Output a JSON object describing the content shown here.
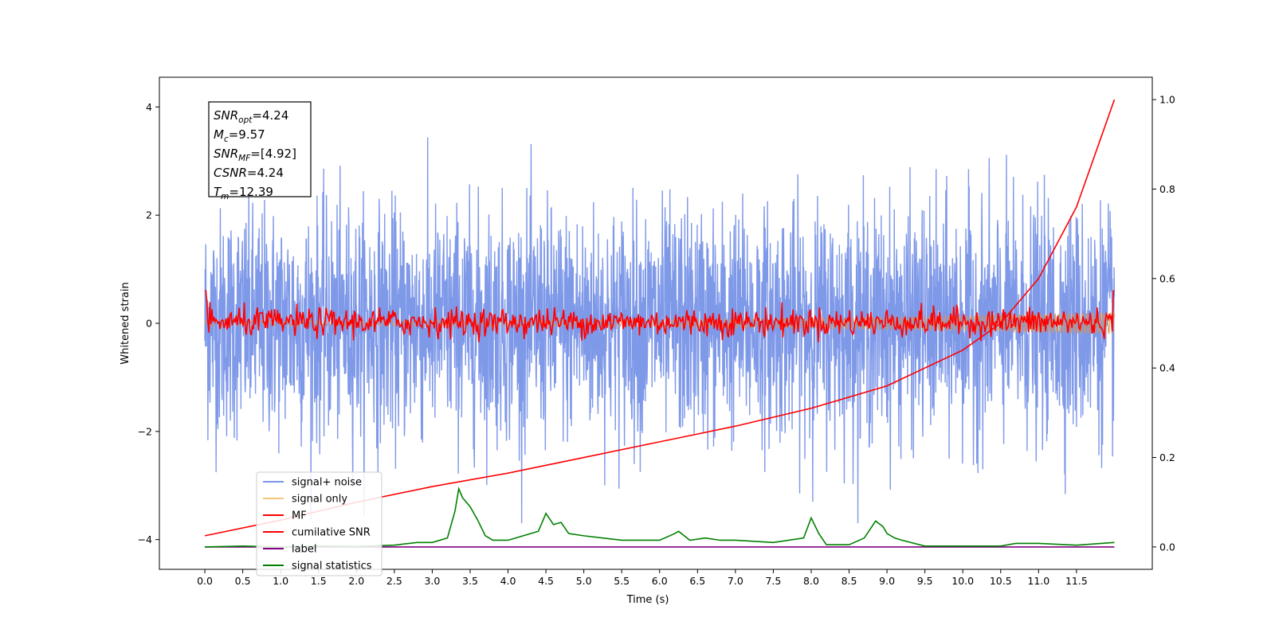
{
  "chart_data": {
    "type": "line",
    "title": "",
    "xlabel": "Time (s)",
    "ylabel": "Whitened strain",
    "xlim": [
      -0.6,
      12.5
    ],
    "ylim": [
      -4.55,
      4.55
    ],
    "y2lim": [
      -0.05,
      1.05
    ],
    "x_ticks": [
      "0.0",
      "0.5",
      "1.0",
      "1.5",
      "2.0",
      "2.5",
      "3.0",
      "3.5",
      "4.0",
      "4.5",
      "5.0",
      "5.5",
      "6.0",
      "6.5",
      "7.0",
      "7.5",
      "8.0",
      "8.5",
      "9.0",
      "9.5",
      "10.0",
      "10.5",
      "11.0",
      "11.5"
    ],
    "x_tick_values": [
      0,
      0.5,
      1,
      1.5,
      2,
      2.5,
      3,
      3.5,
      4,
      4.5,
      5,
      5.5,
      6,
      6.5,
      7,
      7.5,
      8,
      8.5,
      9,
      9.5,
      10,
      10.5,
      11,
      11.5
    ],
    "y_ticks": [
      "4",
      "2",
      "0",
      "−2",
      "−4"
    ],
    "y_tick_values": [
      4,
      2,
      0,
      -2,
      -4
    ],
    "y2_ticks": [
      "1.0",
      "0.8",
      "0.6",
      "0.4",
      "0.2",
      "0.0"
    ],
    "y2_tick_values": [
      1.0,
      0.8,
      0.6,
      0.4,
      0.2,
      0.0
    ],
    "grid": false,
    "legend_placement": "lower-left",
    "annotation": {
      "lines": [
        {
          "sym": "SNR",
          "sub": "opt",
          "rest": "=4.24"
        },
        {
          "sym": "M",
          "sub": "c",
          "rest": "=9.57"
        },
        {
          "sym": "SNR",
          "sub": "MF",
          "rest": "=[4.92]"
        },
        {
          "sym": "CSNR",
          "sub": "",
          "rest": "=4.24"
        },
        {
          "sym": "T",
          "sub": "m",
          "rest": "=12.39"
        }
      ]
    },
    "series": [
      {
        "name": "signal+ noise",
        "color": "#7893e8",
        "axis": "left",
        "t_range": [
          0,
          12
        ],
        "amplitude_range": [
          -3.7,
          4.2
        ]
      },
      {
        "name": "signal only",
        "color": "#f5c77a",
        "axis": "left",
        "t_range": [
          0,
          12
        ],
        "amplitude_range": [
          -0.2,
          0.2
        ]
      },
      {
        "name": "MF",
        "color": "#ff0000",
        "axis": "left",
        "t_range": [
          0,
          12
        ],
        "amplitude_range": [
          -0.35,
          1.0
        ]
      },
      {
        "name": "cumilative SNR",
        "color": "#ff0000",
        "axis": "right",
        "x": [
          0,
          1,
          2,
          3,
          4,
          5,
          6,
          7,
          8,
          9,
          10,
          10.5,
          11,
          11.5,
          12
        ],
        "y": [
          0.025,
          0.06,
          0.1,
          0.135,
          0.165,
          0.2,
          0.235,
          0.27,
          0.31,
          0.36,
          0.44,
          0.5,
          0.6,
          0.76,
          1.0
        ]
      },
      {
        "name": "label",
        "color": "#800080",
        "axis": "right",
        "x": [
          0,
          12
        ],
        "y": [
          0.0,
          0.0
        ]
      },
      {
        "name": "signal statistics",
        "color": "#008000",
        "axis": "right",
        "x": [
          0,
          0.5,
          1,
          1.5,
          2,
          2.5,
          2.8,
          3.0,
          3.2,
          3.3,
          3.35,
          3.4,
          3.5,
          3.6,
          3.7,
          3.8,
          4.0,
          4.2,
          4.4,
          4.5,
          4.6,
          4.7,
          4.8,
          5.0,
          5.5,
          6.0,
          6.2,
          6.25,
          6.4,
          6.6,
          6.8,
          7.0,
          7.5,
          7.9,
          8.0,
          8.1,
          8.2,
          8.5,
          8.7,
          8.85,
          8.95,
          9.0,
          9.1,
          9.2,
          9.5,
          10.0,
          10.5,
          10.7,
          11.0,
          11.5,
          12.0
        ],
        "y": [
          0.0,
          0.002,
          0.0,
          0.002,
          0.001,
          0.004,
          0.01,
          0.01,
          0.02,
          0.08,
          0.13,
          0.11,
          0.09,
          0.06,
          0.025,
          0.015,
          0.015,
          0.025,
          0.035,
          0.075,
          0.05,
          0.055,
          0.03,
          0.025,
          0.015,
          0.015,
          0.03,
          0.035,
          0.015,
          0.02,
          0.015,
          0.015,
          0.01,
          0.02,
          0.065,
          0.03,
          0.005,
          0.005,
          0.02,
          0.058,
          0.045,
          0.03,
          0.02,
          0.015,
          0.002,
          0.002,
          0.002,
          0.008,
          0.008,
          0.004,
          0.01
        ]
      }
    ]
  }
}
